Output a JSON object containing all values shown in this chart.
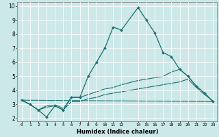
{
  "xlabel": "Humidex (Indice chaleur)",
  "bg_color": "#cce8e8",
  "grid_color": "#ffffff",
  "line_color": "#1a7070",
  "xlim": [
    -0.5,
    23.5
  ],
  "ylim": [
    1.8,
    10.3
  ],
  "xtick_labels": [
    "0",
    "1",
    "2",
    "3",
    "4",
    "5",
    "6",
    "7",
    "8",
    "9",
    "10",
    "11",
    "12",
    "14",
    "15",
    "16",
    "17",
    "18",
    "19",
    "20",
    "21",
    "22",
    "23"
  ],
  "xtick_vals": [
    0,
    1,
    2,
    3,
    4,
    5,
    6,
    7,
    8,
    9,
    10,
    11,
    12,
    14,
    15,
    16,
    17,
    18,
    19,
    20,
    21,
    22,
    23
  ],
  "ytick_vals": [
    2,
    3,
    4,
    5,
    6,
    7,
    8,
    9,
    10
  ],
  "main_line": {
    "x": [
      0,
      1,
      2,
      3,
      4,
      5,
      6,
      7,
      8,
      9,
      10,
      11,
      12,
      14,
      15,
      16,
      17,
      18,
      19,
      20,
      21,
      22,
      23
    ],
    "y": [
      3.3,
      3.0,
      2.6,
      2.1,
      2.9,
      2.6,
      3.5,
      3.5,
      5.0,
      6.0,
      7.0,
      8.5,
      8.3,
      9.9,
      9.0,
      8.1,
      6.7,
      6.4,
      5.5,
      5.0,
      4.3,
      3.8,
      3.2
    ]
  },
  "extra_lines": [
    {
      "x": [
        0,
        1,
        2,
        3,
        4,
        5,
        6,
        7,
        8,
        9,
        10,
        11,
        12,
        14,
        15,
        16,
        17,
        18,
        19,
        20,
        21,
        22,
        23
      ],
      "y": [
        3.3,
        3.0,
        2.6,
        2.9,
        3.0,
        2.7,
        3.5,
        3.5,
        3.7,
        3.9,
        4.1,
        4.2,
        4.4,
        4.7,
        4.8,
        4.9,
        5.0,
        5.3,
        5.5,
        5.0,
        4.3,
        3.8,
        3.2
      ]
    },
    {
      "x": [
        0,
        1,
        2,
        3,
        4,
        5,
        6,
        7,
        8,
        9,
        10,
        11,
        12,
        14,
        15,
        16,
        17,
        18,
        19,
        20,
        21,
        22,
        23
      ],
      "y": [
        3.3,
        3.0,
        2.6,
        2.8,
        2.9,
        2.6,
        3.2,
        3.2,
        3.4,
        3.5,
        3.7,
        3.8,
        3.9,
        4.1,
        4.2,
        4.3,
        4.4,
        4.5,
        4.6,
        4.8,
        4.2,
        3.7,
        3.25
      ]
    },
    {
      "x": [
        0,
        23
      ],
      "y": [
        3.3,
        3.2
      ]
    }
  ]
}
